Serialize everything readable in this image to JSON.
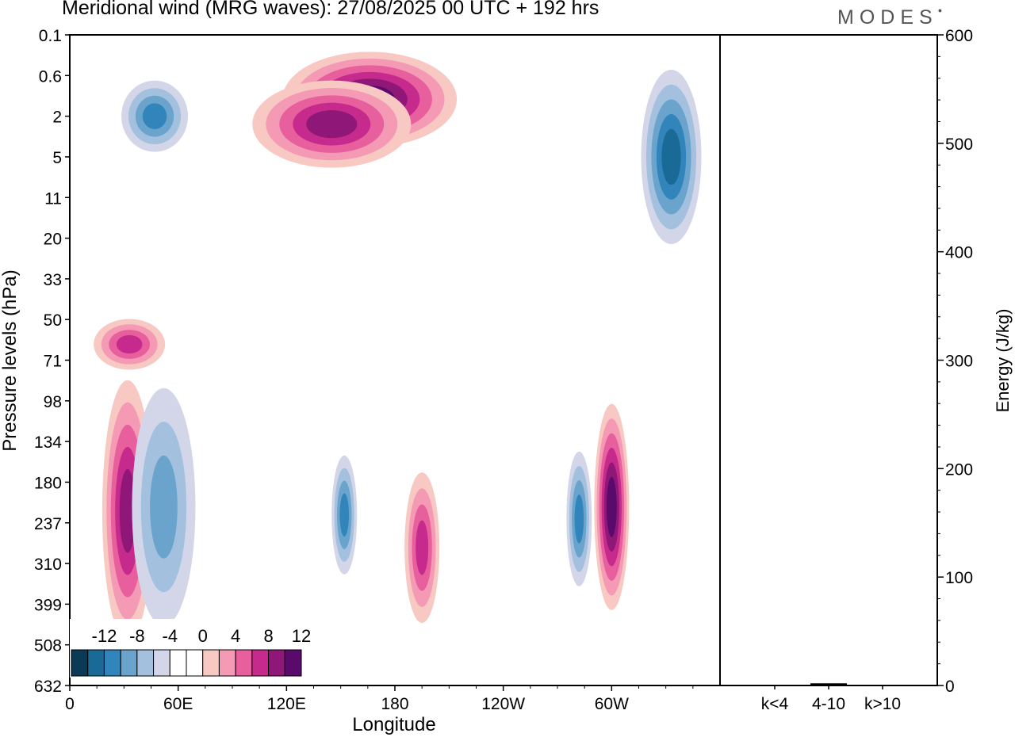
{
  "figure": {
    "title": "Meridional wind (MRG waves):  27/08/2025  00 UTC  + 192 hrs",
    "logo": "MODES"
  },
  "chart_data": [
    {
      "type": "heatmap",
      "title": "Meridional wind (MRG waves):  27/08/2025  00 UTC  + 192 hrs",
      "xlabel": "Longitude",
      "ylabel": "Pressure levels (hPa)",
      "x_ticks": [
        "0",
        "60E",
        "120E",
        "180",
        "120W",
        "60W"
      ],
      "x_tick_lon": [
        0,
        60,
        120,
        180,
        240,
        300
      ],
      "x_range": [
        0,
        360
      ],
      "y_ticks": [
        "0.1",
        "0.6",
        "2",
        "5",
        "11",
        "20",
        "33",
        "50",
        "71",
        "98",
        "134",
        "180",
        "237",
        "310",
        "399",
        "508",
        "632"
      ],
      "colorbar": {
        "labels": [
          "-12",
          "-8",
          "-4",
          "0",
          "4",
          "8",
          "12"
        ],
        "colors": [
          "#0b3a57",
          "#1a6a98",
          "#3285bb",
          "#6aa3cc",
          "#a3c1de",
          "#d3d6e8",
          "#ffffff",
          "#ffffff",
          "#f8c8c3",
          "#f49ab4",
          "#e85f9e",
          "#c62a8c",
          "#8e1778",
          "#5a0a6a"
        ]
      },
      "features": [
        {
          "sign": "positive",
          "lon": 32,
          "lev": "237",
          "peak": 10,
          "desc": "vertical column 134-508 hPa"
        },
        {
          "sign": "negative",
          "lon": 52,
          "lev": "237",
          "peak": -6
        },
        {
          "sign": "negative",
          "lon": 152,
          "lev": "237",
          "peak": -7
        },
        {
          "sign": "positive",
          "lon": 195,
          "lev": "310",
          "peak": 8
        },
        {
          "sign": "negative",
          "lon": 282,
          "lev": "237",
          "peak": -8
        },
        {
          "sign": "positive",
          "lon": 300,
          "lev": "237",
          "peak": 11
        },
        {
          "sign": "positive",
          "lon": 166,
          "lev": "0.6",
          "peak": 12
        },
        {
          "sign": "positive",
          "lon": 145,
          "lev": "2",
          "peak": 9
        },
        {
          "sign": "negative",
          "lon": 333,
          "lev": "5",
          "peak": -9
        },
        {
          "sign": "negative",
          "lon": 47,
          "lev": "2",
          "peak": -8
        },
        {
          "sign": "positive",
          "lon": 33,
          "lev": "71",
          "peak": 7
        }
      ]
    },
    {
      "type": "bar",
      "title": "",
      "ylabel": "Energy (J/kg)",
      "categories": [
        "k<4",
        "4-10",
        "k>10"
      ],
      "values": [
        0,
        2,
        0
      ],
      "ylim": [
        0,
        600
      ],
      "y_ticks": [
        "0",
        "100",
        "200",
        "300",
        "400",
        "500",
        "600"
      ]
    }
  ]
}
